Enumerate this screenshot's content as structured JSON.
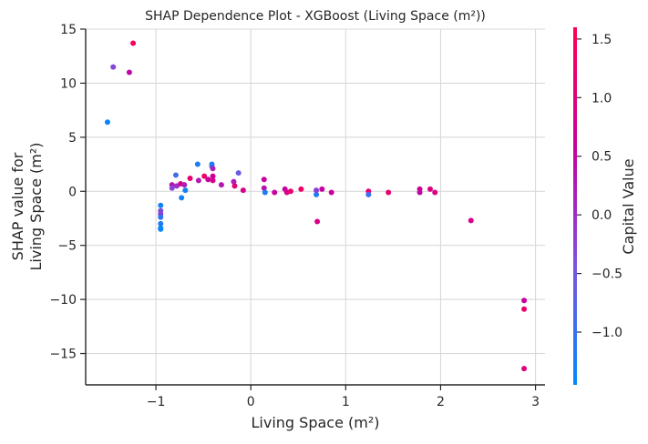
{
  "chart_data": {
    "type": "scatter",
    "title": "SHAP Dependence Plot - XGBoost (Living Space (m²))",
    "xlabel": "Living Space (m²)",
    "ylabel_lines": [
      "SHAP value for",
      "Living Space (m²)"
    ],
    "xlim": [
      -1.74,
      3.1
    ],
    "ylim": [
      -17.9,
      15.0
    ],
    "x_ticks": [
      -1,
      0,
      1,
      2,
      3
    ],
    "x_tick_labels": [
      "−1",
      "0",
      "1",
      "2",
      "3"
    ],
    "y_ticks": [
      15,
      10,
      5,
      0,
      -5,
      -10,
      -15
    ],
    "y_tick_labels": [
      "15",
      "10",
      "5",
      "0",
      "−5",
      "−10",
      "−15"
    ],
    "grid": true,
    "colorbar": {
      "label": "Capital Value",
      "range": [
        -1.45,
        1.6
      ],
      "ticks": [
        1.5,
        1.0,
        0.5,
        0.0,
        -0.5,
        -1.0
      ],
      "tick_labels": [
        "1.5",
        "1.0",
        "0.5",
        "0.0",
        "−0.5",
        "−1.0"
      ],
      "colormap": [
        "#008afb",
        "#7c52e0",
        "#c600a0",
        "#ff0052"
      ]
    },
    "points": [
      {
        "x": -1.51,
        "y": 6.4,
        "c": -1.35
      },
      {
        "x": -1.45,
        "y": 11.5,
        "c": -0.3
      },
      {
        "x": -1.28,
        "y": 11.0,
        "c": 0.5
      },
      {
        "x": -1.24,
        "y": 13.7,
        "c": 1.45
      },
      {
        "x": -0.95,
        "y": -1.3,
        "c": -1.3
      },
      {
        "x": -0.95,
        "y": -1.8,
        "c": -0.4
      },
      {
        "x": -0.95,
        "y": -2.1,
        "c": -0.2
      },
      {
        "x": -0.95,
        "y": -2.4,
        "c": -1.1
      },
      {
        "x": -0.95,
        "y": -3.0,
        "c": -1.2
      },
      {
        "x": -0.95,
        "y": -3.4,
        "c": -1.3
      },
      {
        "x": -0.95,
        "y": -3.5,
        "c": -1.4
      },
      {
        "x": -0.83,
        "y": 0.6,
        "c": 0.4
      },
      {
        "x": -0.83,
        "y": 0.3,
        "c": -0.3
      },
      {
        "x": -0.79,
        "y": 1.5,
        "c": -0.9
      },
      {
        "x": -0.78,
        "y": 0.5,
        "c": 0.0
      },
      {
        "x": -0.74,
        "y": 0.7,
        "c": 0.9
      },
      {
        "x": -0.73,
        "y": -0.6,
        "c": -1.3
      },
      {
        "x": -0.7,
        "y": 0.6,
        "c": 0.2
      },
      {
        "x": -0.69,
        "y": 0.1,
        "c": -1.3
      },
      {
        "x": -0.64,
        "y": 1.2,
        "c": 1.2
      },
      {
        "x": -0.56,
        "y": 2.5,
        "c": -1.2
      },
      {
        "x": -0.55,
        "y": 1.0,
        "c": 0.3
      },
      {
        "x": -0.49,
        "y": 1.4,
        "c": 1.3
      },
      {
        "x": -0.45,
        "y": 1.1,
        "c": 0.6
      },
      {
        "x": -0.41,
        "y": 2.5,
        "c": -1.3
      },
      {
        "x": -0.41,
        "y": 2.3,
        "c": -1.0
      },
      {
        "x": -0.4,
        "y": 2.1,
        "c": 0.2
      },
      {
        "x": -0.4,
        "y": 1.4,
        "c": 0.7
      },
      {
        "x": -0.4,
        "y": 1.0,
        "c": 0.9
      },
      {
        "x": -0.31,
        "y": 0.6,
        "c": 0.3
      },
      {
        "x": -0.18,
        "y": 0.9,
        "c": 0.2
      },
      {
        "x": -0.17,
        "y": 0.5,
        "c": 1.1
      },
      {
        "x": -0.13,
        "y": 1.7,
        "c": -0.6
      },
      {
        "x": -0.08,
        "y": 0.1,
        "c": 0.9
      },
      {
        "x": 0.14,
        "y": 1.1,
        "c": 0.6
      },
      {
        "x": 0.14,
        "y": 0.3,
        "c": 0.4
      },
      {
        "x": 0.15,
        "y": -0.1,
        "c": -1.2
      },
      {
        "x": 0.25,
        "y": -0.1,
        "c": 0.6
      },
      {
        "x": 0.36,
        "y": 0.2,
        "c": 0.6
      },
      {
        "x": 0.38,
        "y": -0.1,
        "c": 0.9
      },
      {
        "x": 0.42,
        "y": 0.0,
        "c": 1.2
      },
      {
        "x": 0.53,
        "y": 0.2,
        "c": 1.3
      },
      {
        "x": 0.69,
        "y": -0.3,
        "c": -1.2
      },
      {
        "x": 0.69,
        "y": 0.1,
        "c": -0.2
      },
      {
        "x": 0.7,
        "y": -2.8,
        "c": 0.9
      },
      {
        "x": 0.75,
        "y": 0.2,
        "c": 0.6
      },
      {
        "x": 0.85,
        "y": -0.1,
        "c": 0.7
      },
      {
        "x": 1.24,
        "y": 0.0,
        "c": 1.2
      },
      {
        "x": 1.24,
        "y": -0.3,
        "c": -1.0
      },
      {
        "x": 1.45,
        "y": -0.1,
        "c": 1.2
      },
      {
        "x": 1.78,
        "y": 0.2,
        "c": 0.7
      },
      {
        "x": 1.78,
        "y": -0.1,
        "c": 0.5
      },
      {
        "x": 1.89,
        "y": 0.2,
        "c": 1.0
      },
      {
        "x": 1.94,
        "y": -0.1,
        "c": 0.9
      },
      {
        "x": 2.32,
        "y": -2.7,
        "c": 0.9
      },
      {
        "x": 2.88,
        "y": -10.1,
        "c": 0.6
      },
      {
        "x": 2.88,
        "y": -10.9,
        "c": 1.2
      },
      {
        "x": 2.88,
        "y": -16.4,
        "c": 1.0
      }
    ]
  }
}
